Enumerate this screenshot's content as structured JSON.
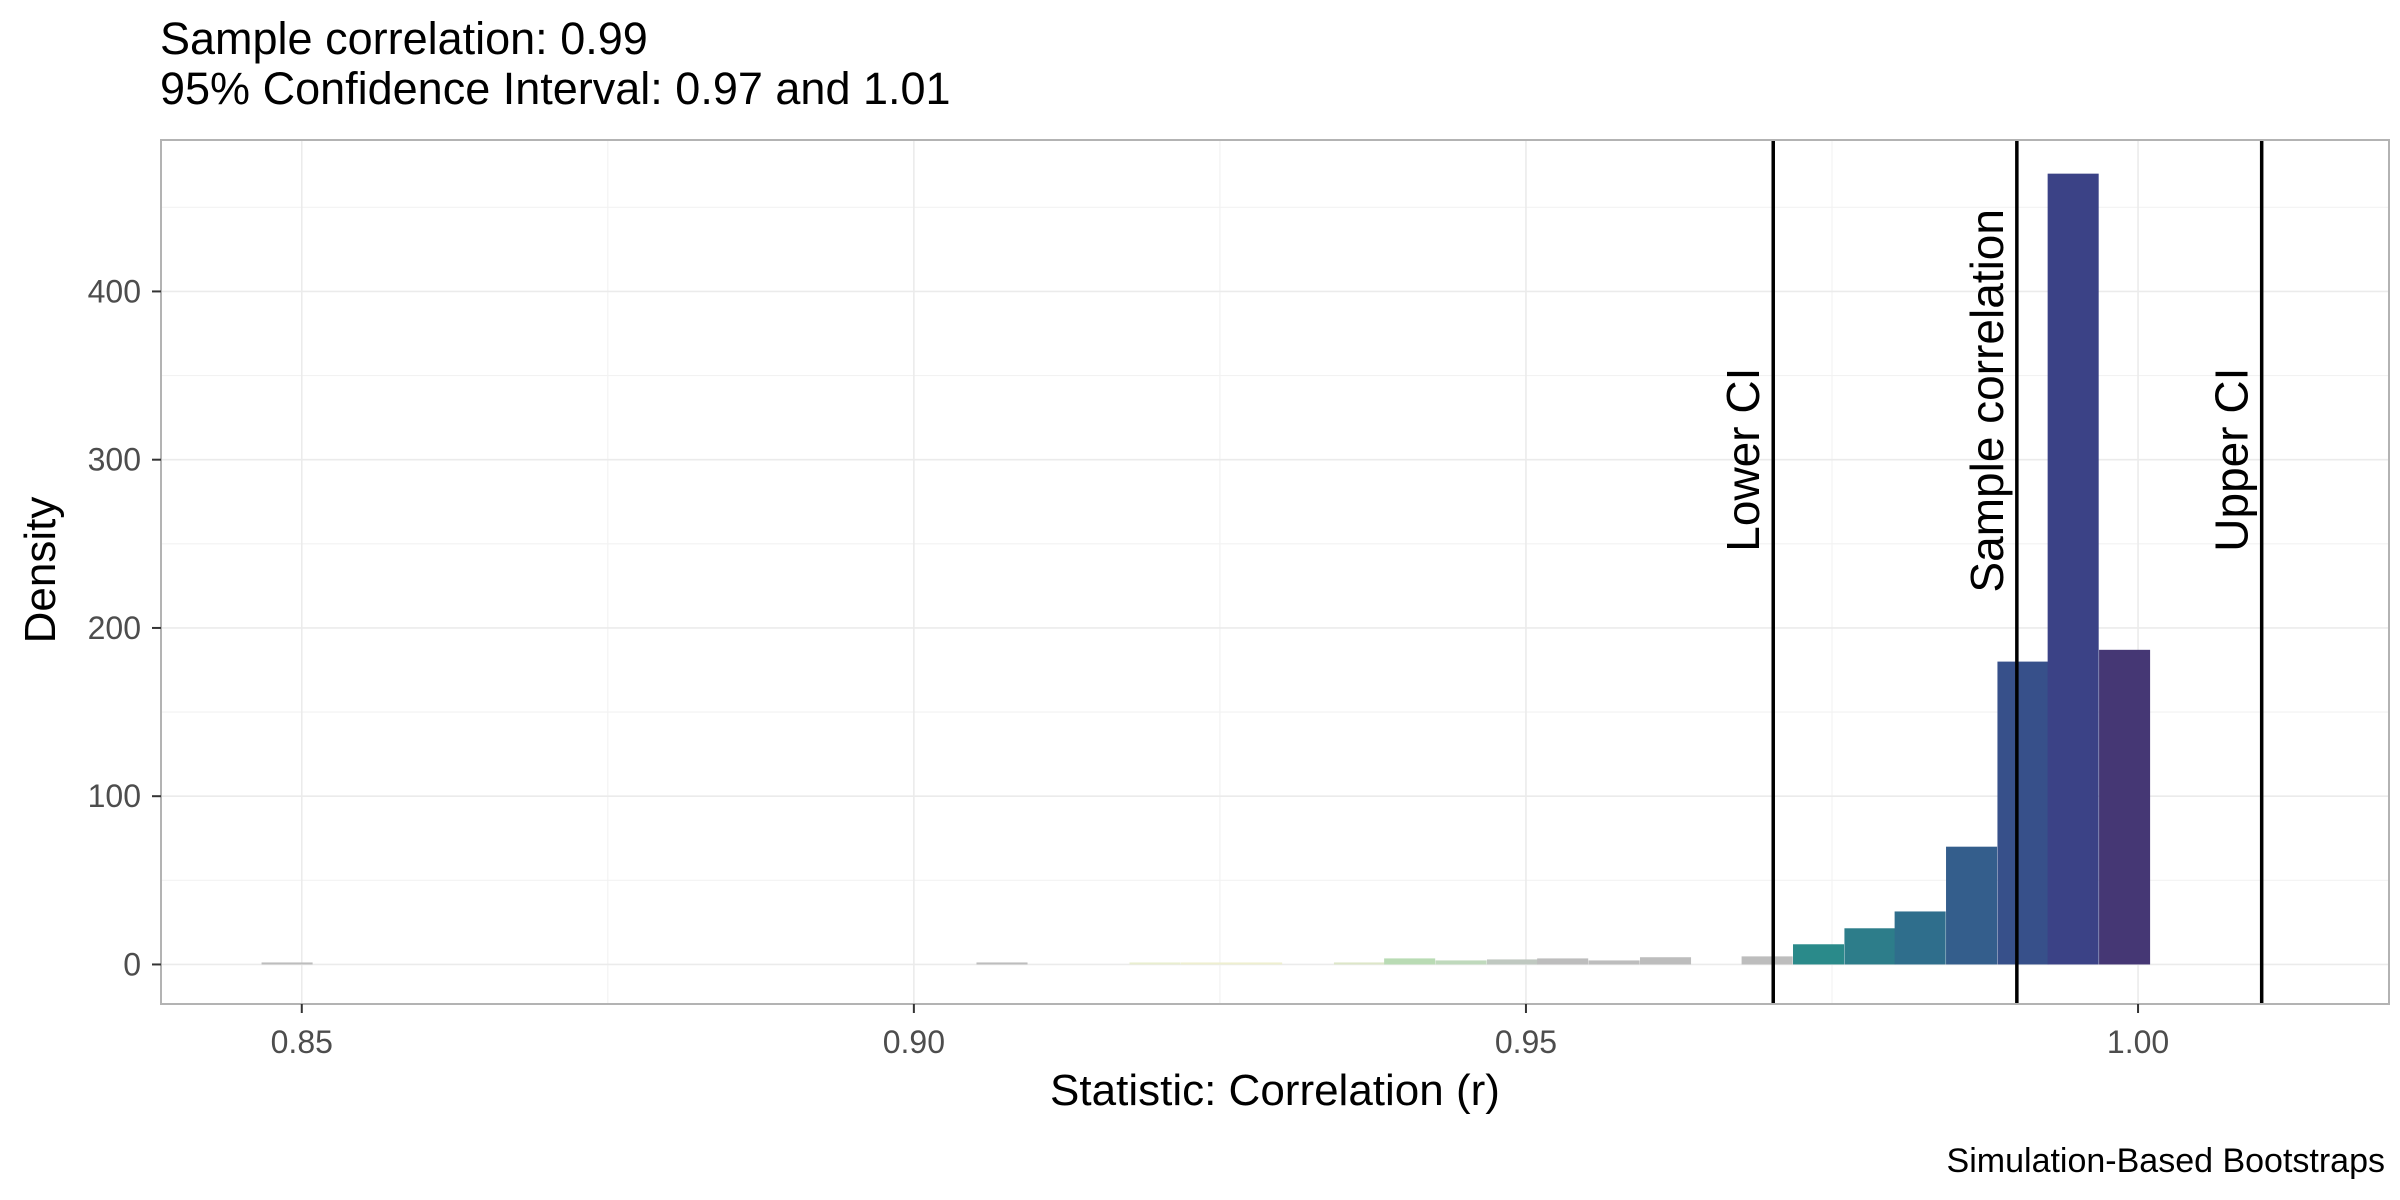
{
  "chart_data": {
    "type": "bar",
    "title": "Sample correlation: 0.99",
    "subtitle": "95% Confidence Interval: 0.97 and 1.01",
    "xlabel": "Statistic: Correlation (r)",
    "ylabel": "Density",
    "caption": "Simulation-Based Bootstraps",
    "xlim": [
      0.8385,
      1.0205
    ],
    "ylim": [
      -23.5,
      490
    ],
    "x_ticks": [
      0.85,
      0.9,
      0.95,
      1.0
    ],
    "x_tick_labels": [
      "0.85",
      "0.90",
      "0.95",
      "1.00"
    ],
    "y_ticks": [
      0,
      100,
      200,
      300,
      400
    ],
    "y_tick_labels": [
      "0",
      "100",
      "200",
      "300",
      "400"
    ],
    "grid": true,
    "bin_width": 0.00417,
    "bins": [
      {
        "x": 0.8488,
        "density": 1.2,
        "color": "#bdbdbd"
      },
      {
        "x": 0.9072,
        "density": 1.2,
        "color": "#bdbdbd"
      },
      {
        "x": 0.9197,
        "density": 1.2,
        "color": "#e9eed0"
      },
      {
        "x": 0.9239,
        "density": 1.2,
        "color": "#eeefd0"
      },
      {
        "x": 0.928,
        "density": 1.2,
        "color": "#eeefd0"
      },
      {
        "x": 0.9364,
        "density": 1.2,
        "color": "#dde6c8"
      },
      {
        "x": 0.9405,
        "density": 3.6,
        "color": "#b9dbb4"
      },
      {
        "x": 0.9447,
        "density": 2.4,
        "color": "#bfd9bc"
      },
      {
        "x": 0.9489,
        "density": 3.0,
        "color": "#bfc8c0"
      },
      {
        "x": 0.953,
        "density": 3.6,
        "color": "#bdbdbd"
      },
      {
        "x": 0.9572,
        "density": 2.4,
        "color": "#bdbdbd"
      },
      {
        "x": 0.9614,
        "density": 4.3,
        "color": "#bdbdbd"
      },
      {
        "x": 0.9697,
        "density": 4.8,
        "color": "#bdbdbd"
      },
      {
        "x": 0.9739,
        "density": 12.0,
        "color": "#2a8a8a"
      },
      {
        "x": 0.9781,
        "density": 21.5,
        "color": "#2d7d8a"
      },
      {
        "x": 0.9822,
        "density": 31.5,
        "color": "#2f6e8c"
      },
      {
        "x": 0.9864,
        "density": 70.0,
        "color": "#345e8c"
      },
      {
        "x": 0.9906,
        "density": 180.0,
        "color": "#37508a"
      },
      {
        "x": 0.9947,
        "density": 470.0,
        "color": "#3b4286"
      },
      {
        "x": 0.9989,
        "density": 187.0,
        "color": "#453774"
      }
    ],
    "vlines": [
      {
        "x": 0.9702,
        "label": "Lower CI"
      },
      {
        "x": 0.9901,
        "label": "Sample correlation"
      },
      {
        "x": 1.0101,
        "label": "Upper CI"
      }
    ]
  }
}
